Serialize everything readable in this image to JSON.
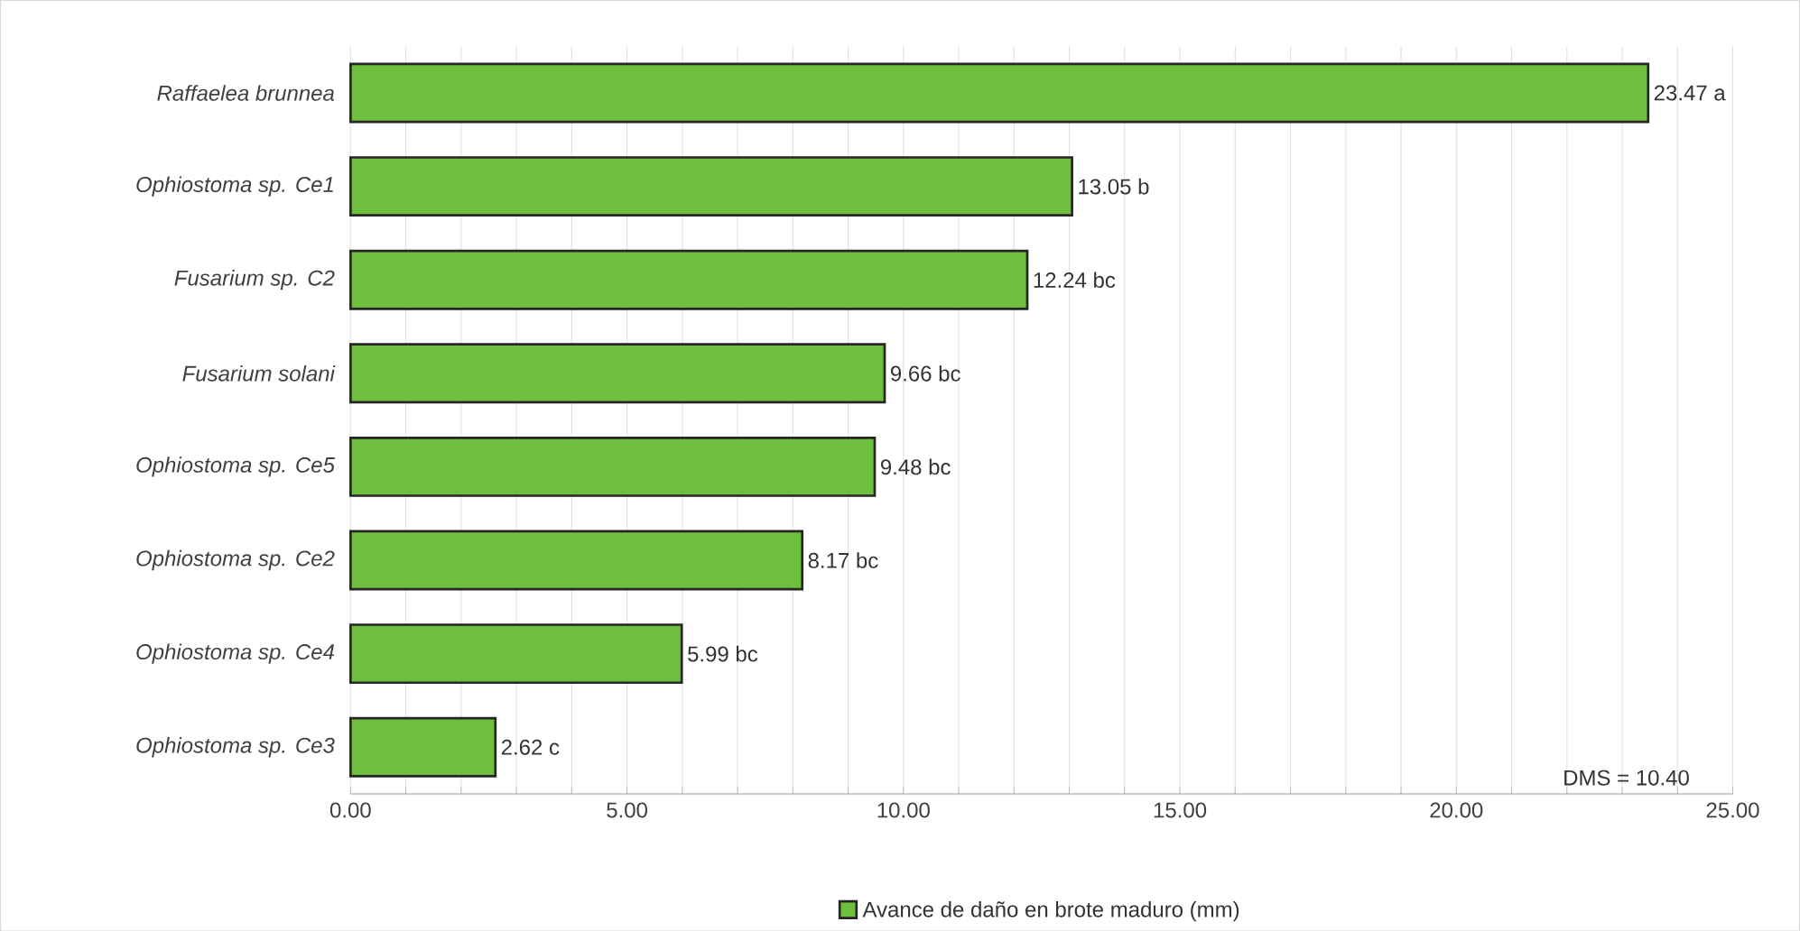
{
  "chart_data": {
    "type": "bar",
    "orientation": "horizontal",
    "categories": [
      "Raffaelea brunnea",
      "Ophiostoma sp. Ce1",
      "Fusarium sp. C2",
      "Fusarium solani",
      "Ophiostoma sp. Ce5",
      "Ophiostoma sp. Ce2",
      "Ophiostoma sp. Ce4",
      "Ophiostoma sp. Ce3"
    ],
    "series": [
      {
        "name": "Avance de daño en brote maduro (mm)",
        "color": "#6fbf3f",
        "values": [
          23.47,
          13.05,
          12.24,
          9.66,
          9.48,
          8.17,
          5.99,
          2.62
        ],
        "value_labels": [
          "23.47 a",
          "13.05 b",
          "12.24 bc",
          "9.66 bc",
          "9.48 bc",
          "8.17 bc",
          "5.99 bc",
          "2.62 c"
        ]
      }
    ],
    "xlim": [
      0,
      25
    ],
    "xticks": [
      {
        "value": 0,
        "label": "0.00"
      },
      {
        "value": 1,
        "label": null
      },
      {
        "value": 2,
        "label": null
      },
      {
        "value": 3,
        "label": null
      },
      {
        "value": 4,
        "label": null
      },
      {
        "value": 5,
        "label": "5.00"
      },
      {
        "value": 6,
        "label": null
      },
      {
        "value": 7,
        "label": null
      },
      {
        "value": 8,
        "label": null
      },
      {
        "value": 9,
        "label": null
      },
      {
        "value": 10,
        "label": "10.00"
      },
      {
        "value": 11,
        "label": null
      },
      {
        "value": 12,
        "label": null
      },
      {
        "value": 13,
        "label": null
      },
      {
        "value": 14,
        "label": null
      },
      {
        "value": 15,
        "label": "15.00"
      },
      {
        "value": 16,
        "label": null
      },
      {
        "value": 17,
        "label": null
      },
      {
        "value": 18,
        "label": null
      },
      {
        "value": 19,
        "label": null
      },
      {
        "value": 20,
        "label": "20.00"
      },
      {
        "value": 21,
        "label": null
      },
      {
        "value": 22,
        "label": null
      },
      {
        "value": 23,
        "label": null
      },
      {
        "value": 24,
        "label": null
      },
      {
        "value": 25,
        "label": "25.00"
      }
    ],
    "grid": "x",
    "legend": "bottom",
    "annotations": [
      "DMS = 10.40"
    ]
  }
}
